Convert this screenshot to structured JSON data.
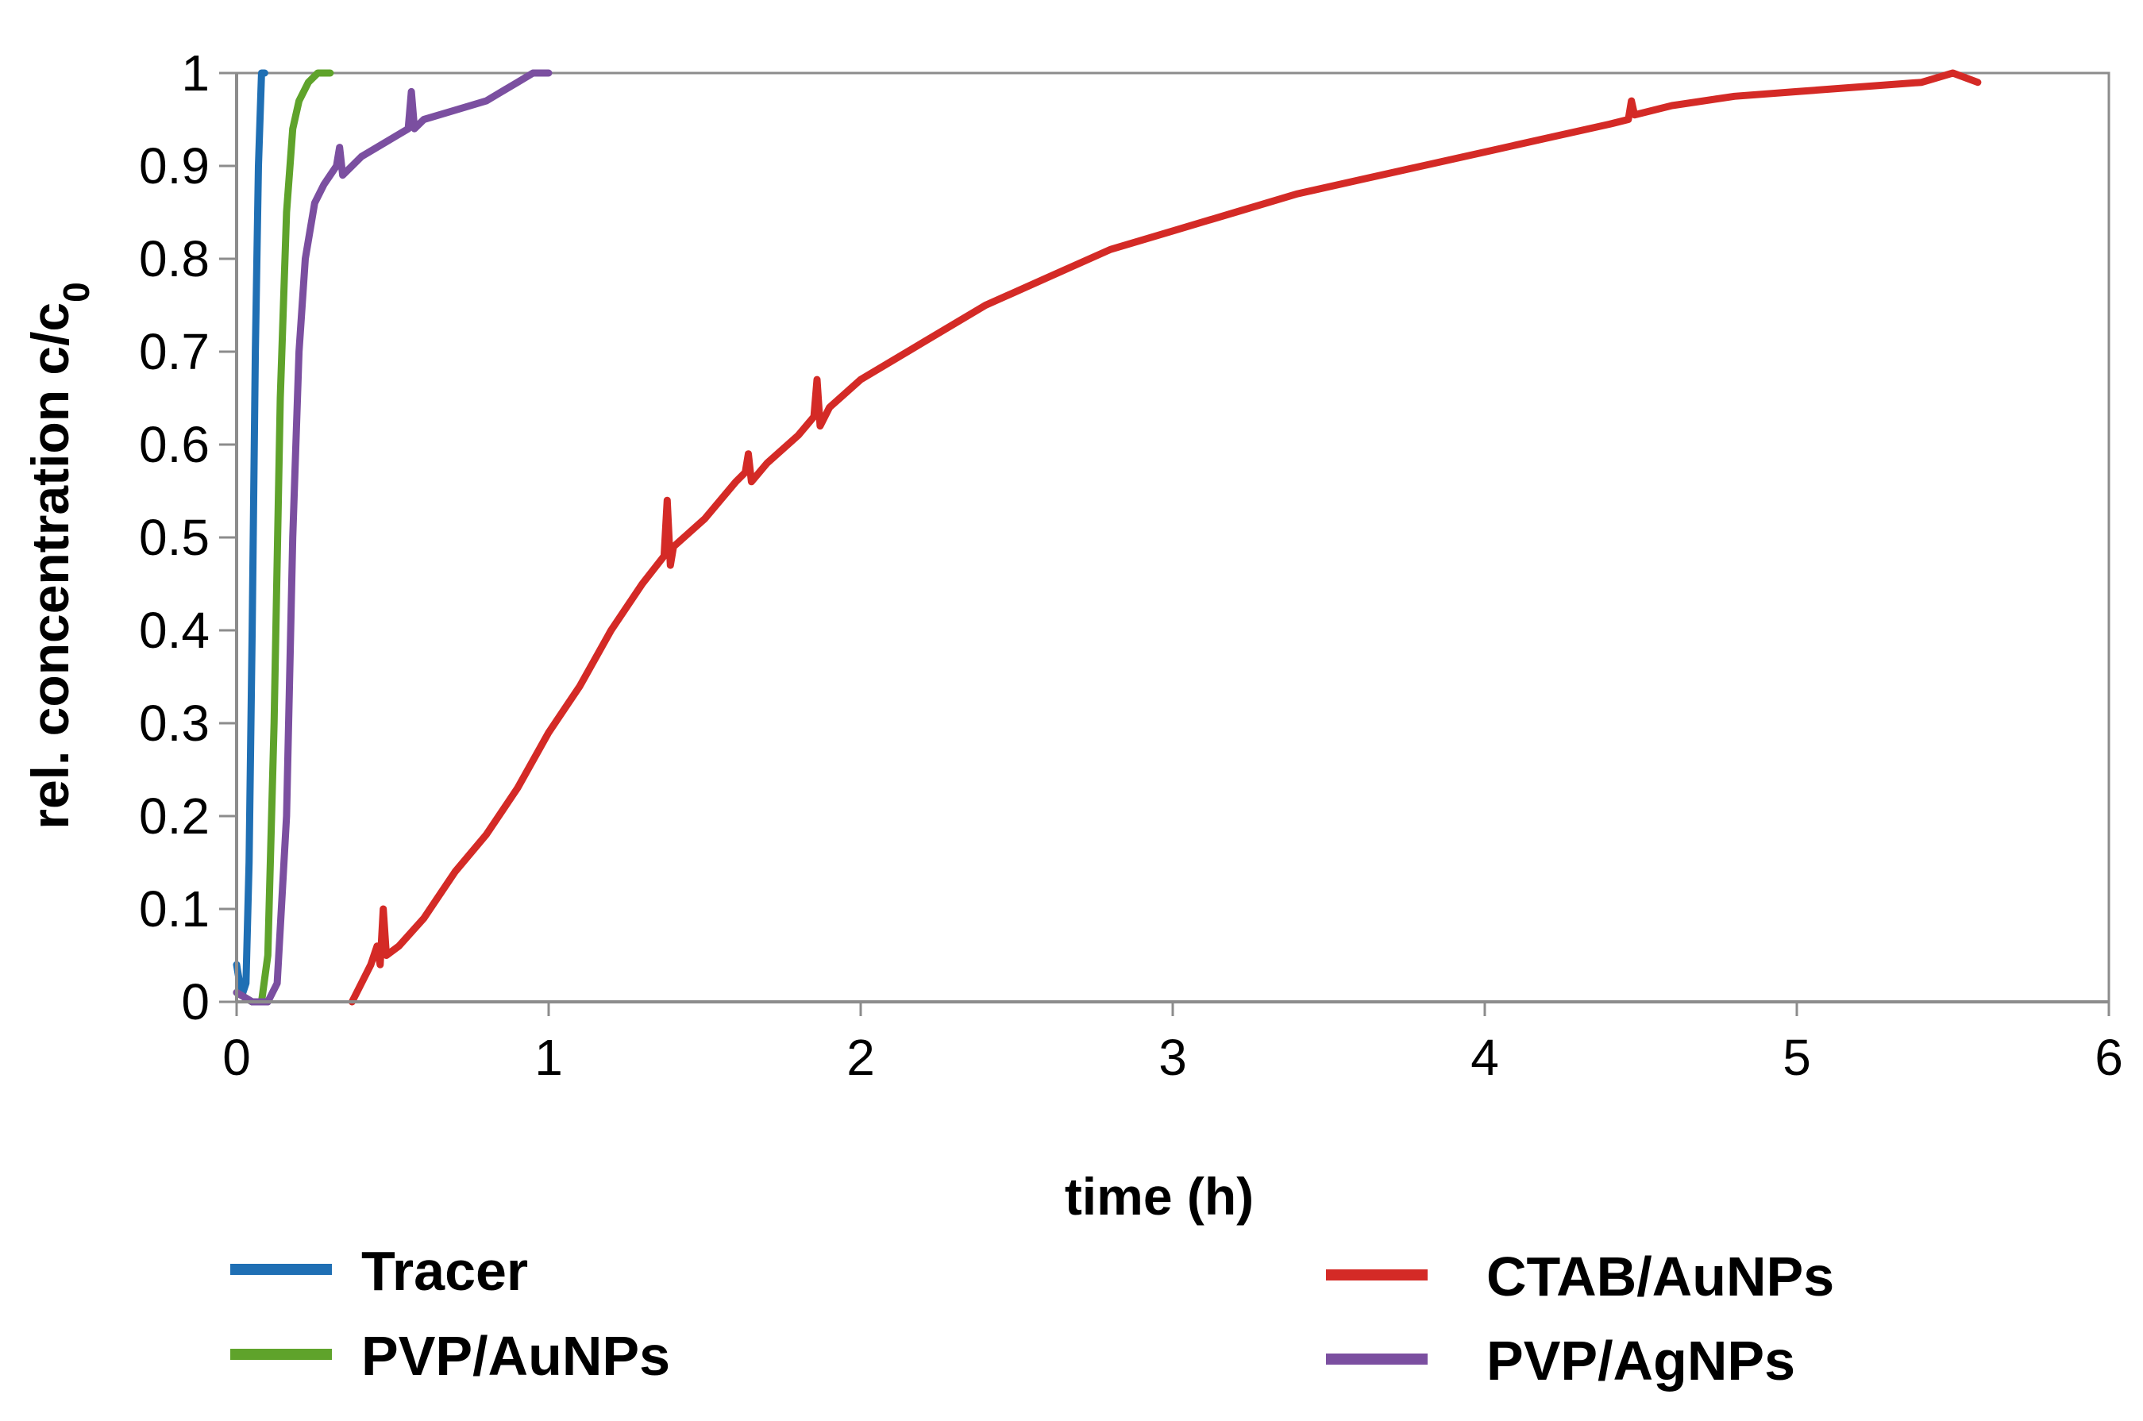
{
  "chart_data": {
    "type": "line",
    "title": "",
    "xlabel": "time (h)",
    "ylabel": {
      "main": "rel. concentration c/c",
      "subscript": "0"
    },
    "xlim": [
      0,
      6
    ],
    "ylim": [
      0,
      1
    ],
    "xticks": [
      0,
      1,
      2,
      3,
      4,
      5,
      6
    ],
    "yticks": [
      0,
      0.1,
      0.2,
      0.3,
      0.4,
      0.5,
      0.6,
      0.7,
      0.8,
      0.9,
      1
    ],
    "grid": false,
    "legend_position": "bottom",
    "series": [
      {
        "name": "Tracer",
        "color": "#1f6fb4",
        "points": [
          [
            0.0,
            0.04
          ],
          [
            0.01,
            0.02
          ],
          [
            0.02,
            0.01
          ],
          [
            0.03,
            0.02
          ],
          [
            0.04,
            0.15
          ],
          [
            0.05,
            0.4
          ],
          [
            0.06,
            0.7
          ],
          [
            0.07,
            0.9
          ],
          [
            0.08,
            1.0
          ],
          [
            0.09,
            1.0
          ]
        ]
      },
      {
        "name": "PVP/AuNPs",
        "color": "#5fa32b",
        "points": [
          [
            0.0,
            0.01
          ],
          [
            0.05,
            0.0
          ],
          [
            0.08,
            0.0
          ],
          [
            0.1,
            0.05
          ],
          [
            0.12,
            0.3
          ],
          [
            0.14,
            0.65
          ],
          [
            0.16,
            0.85
          ],
          [
            0.18,
            0.94
          ],
          [
            0.2,
            0.97
          ],
          [
            0.23,
            0.99
          ],
          [
            0.26,
            1.0
          ],
          [
            0.3,
            1.0
          ]
        ]
      },
      {
        "name": "CTAB/AuNPs",
        "color": "#d42a26",
        "points": [
          [
            0.37,
            0.0
          ],
          [
            0.4,
            0.02
          ],
          [
            0.43,
            0.04
          ],
          [
            0.45,
            0.06
          ],
          [
            0.46,
            0.04
          ],
          [
            0.47,
            0.1
          ],
          [
            0.48,
            0.05
          ],
          [
            0.52,
            0.06
          ],
          [
            0.6,
            0.09
          ],
          [
            0.7,
            0.14
          ],
          [
            0.8,
            0.18
          ],
          [
            0.9,
            0.23
          ],
          [
            1.0,
            0.29
          ],
          [
            1.1,
            0.34
          ],
          [
            1.2,
            0.4
          ],
          [
            1.3,
            0.45
          ],
          [
            1.37,
            0.48
          ],
          [
            1.38,
            0.54
          ],
          [
            1.39,
            0.47
          ],
          [
            1.4,
            0.49
          ],
          [
            1.5,
            0.52
          ],
          [
            1.6,
            0.56
          ],
          [
            1.63,
            0.57
          ],
          [
            1.64,
            0.59
          ],
          [
            1.65,
            0.56
          ],
          [
            1.7,
            0.58
          ],
          [
            1.8,
            0.61
          ],
          [
            1.85,
            0.63
          ],
          [
            1.86,
            0.67
          ],
          [
            1.87,
            0.62
          ],
          [
            1.9,
            0.64
          ],
          [
            2.0,
            0.67
          ],
          [
            2.2,
            0.71
          ],
          [
            2.4,
            0.75
          ],
          [
            2.6,
            0.78
          ],
          [
            2.8,
            0.81
          ],
          [
            3.0,
            0.83
          ],
          [
            3.2,
            0.85
          ],
          [
            3.4,
            0.87
          ],
          [
            3.6,
            0.885
          ],
          [
            3.8,
            0.9
          ],
          [
            4.0,
            0.915
          ],
          [
            4.2,
            0.93
          ],
          [
            4.4,
            0.945
          ],
          [
            4.46,
            0.95
          ],
          [
            4.47,
            0.97
          ],
          [
            4.48,
            0.955
          ],
          [
            4.6,
            0.965
          ],
          [
            4.8,
            0.975
          ],
          [
            5.0,
            0.98
          ],
          [
            5.2,
            0.985
          ],
          [
            5.4,
            0.99
          ],
          [
            5.5,
            1.0
          ],
          [
            5.58,
            0.99
          ]
        ]
      },
      {
        "name": "PVP/AgNPs",
        "color": "#7b4fa0",
        "points": [
          [
            0.0,
            0.01
          ],
          [
            0.05,
            0.0
          ],
          [
            0.1,
            0.0
          ],
          [
            0.13,
            0.02
          ],
          [
            0.16,
            0.2
          ],
          [
            0.18,
            0.5
          ],
          [
            0.2,
            0.7
          ],
          [
            0.22,
            0.8
          ],
          [
            0.25,
            0.86
          ],
          [
            0.28,
            0.88
          ],
          [
            0.3,
            0.89
          ],
          [
            0.32,
            0.9
          ],
          [
            0.33,
            0.92
          ],
          [
            0.34,
            0.89
          ],
          [
            0.4,
            0.91
          ],
          [
            0.5,
            0.93
          ],
          [
            0.55,
            0.94
          ],
          [
            0.56,
            0.98
          ],
          [
            0.57,
            0.94
          ],
          [
            0.6,
            0.95
          ],
          [
            0.7,
            0.96
          ],
          [
            0.8,
            0.97
          ],
          [
            0.9,
            0.99
          ],
          [
            0.95,
            1.0
          ],
          [
            1.0,
            1.0
          ]
        ]
      }
    ]
  }
}
